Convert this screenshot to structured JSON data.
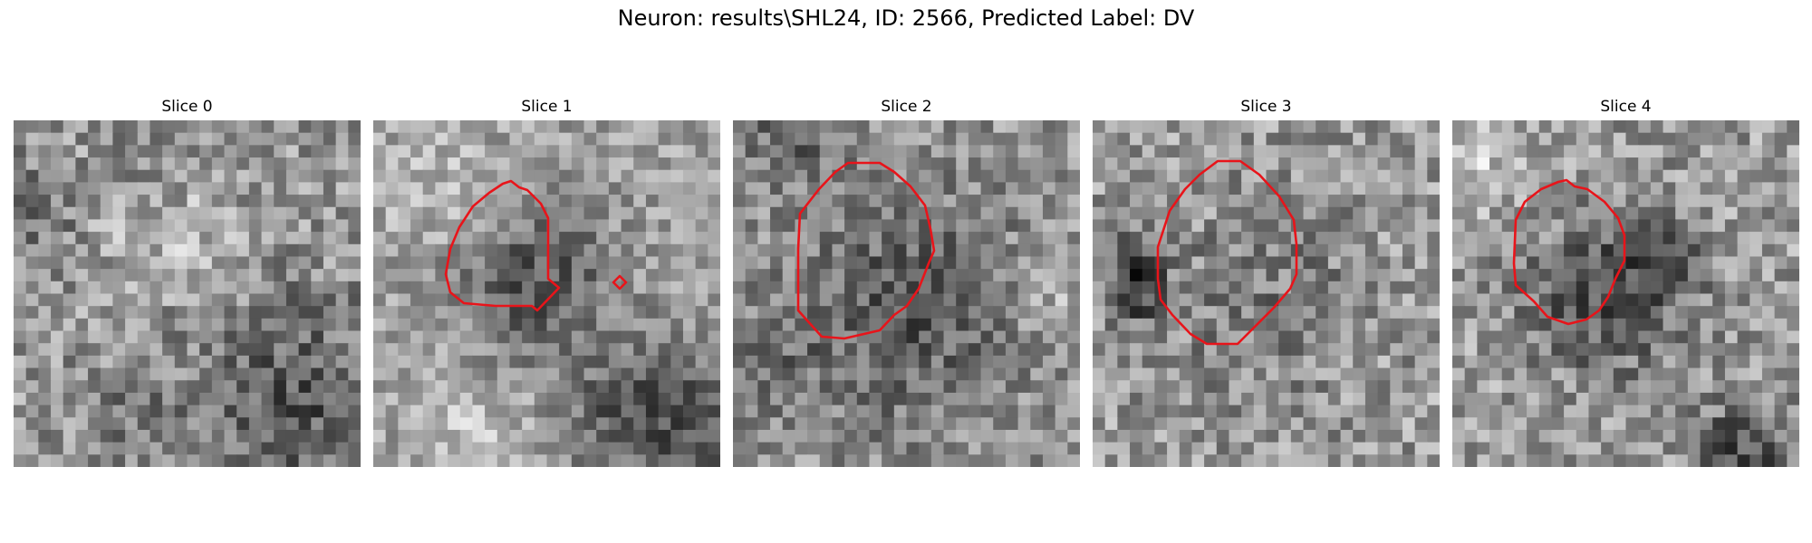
{
  "figure": {
    "title": "Neuron: results\\SHL24, ID: 2566, Predicted Label: DV"
  },
  "slices": [
    {
      "title": "Slice 0",
      "has_contour": false
    },
    {
      "title": "Slice 1",
      "has_contour": true
    },
    {
      "title": "Slice 2",
      "has_contour": true
    },
    {
      "title": "Slice 3",
      "has_contour": true
    },
    {
      "title": "Slice 4",
      "has_contour": true
    }
  ],
  "colors": {
    "contour": "#e8141a",
    "background": "#ffffff"
  }
}
